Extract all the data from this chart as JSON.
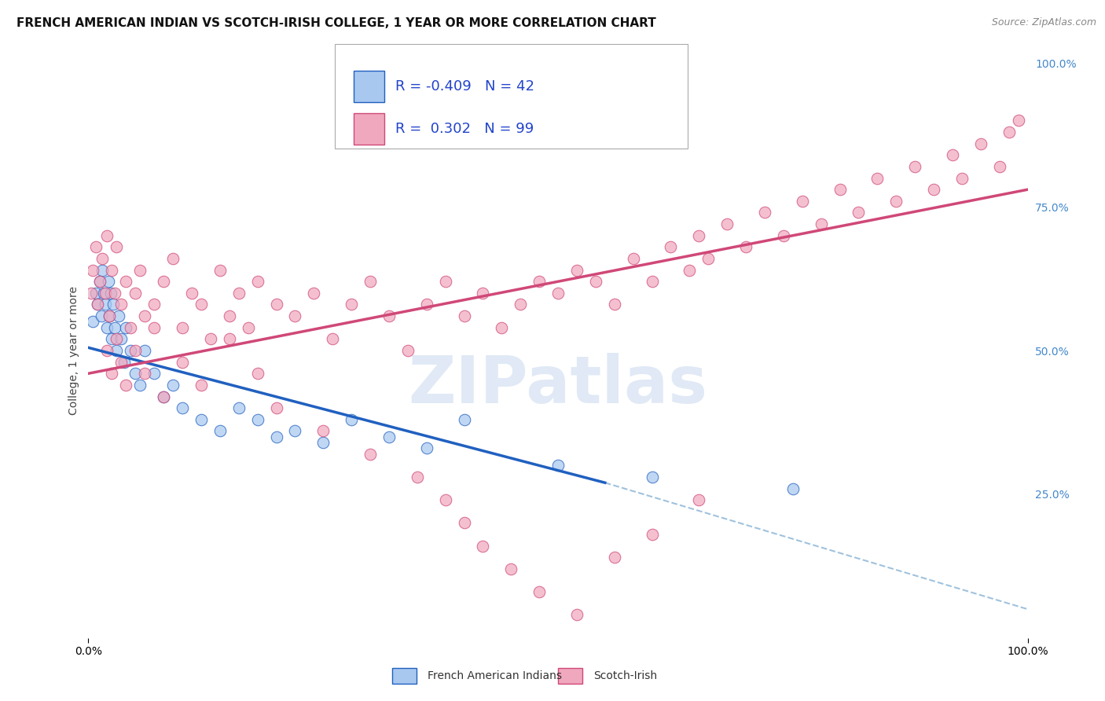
{
  "title": "FRENCH AMERICAN INDIAN VS SCOTCH-IRISH COLLEGE, 1 YEAR OR MORE CORRELATION CHART",
  "source": "Source: ZipAtlas.com",
  "ylabel": "College, 1 year or more",
  "legend_label_1": "French American Indians",
  "legend_label_2": "Scotch-Irish",
  "r1": -0.409,
  "n1": 42,
  "r2": 0.302,
  "n2": 99,
  "color_blue": "#a8c8f0",
  "color_pink": "#f0a8be",
  "line_blue": "#2060c0",
  "line_pink": "#d04878",
  "line_dash_color": "#90b8d8",
  "watermark_color": "#c8d8ee",
  "tick_color_right": "#4488cc",
  "grid_color": "#c8d8e8",
  "title_color": "#111111",
  "source_color": "#888888",
  "bg_color": "#ffffff",
  "blue_x": [
    0.5,
    0.8,
    1.0,
    1.2,
    1.4,
    1.5,
    1.6,
    1.8,
    2.0,
    2.1,
    2.2,
    2.4,
    2.5,
    2.6,
    2.8,
    3.0,
    3.2,
    3.5,
    3.8,
    4.0,
    4.5,
    5.0,
    5.5,
    6.0,
    7.0,
    8.0,
    9.0,
    10.0,
    12.0,
    14.0,
    16.0,
    18.0,
    20.0,
    22.0,
    25.0,
    28.0,
    32.0,
    36.0,
    40.0,
    50.0,
    60.0,
    75.0
  ],
  "blue_y": [
    55.0,
    60.0,
    58.0,
    62.0,
    56.0,
    64.0,
    60.0,
    58.0,
    54.0,
    62.0,
    56.0,
    60.0,
    52.0,
    58.0,
    54.0,
    50.0,
    56.0,
    52.0,
    48.0,
    54.0,
    50.0,
    46.0,
    44.0,
    50.0,
    46.0,
    42.0,
    44.0,
    40.0,
    38.0,
    36.0,
    40.0,
    38.0,
    35.0,
    36.0,
    34.0,
    38.0,
    35.0,
    33.0,
    38.0,
    30.0,
    28.0,
    26.0
  ],
  "pink_x": [
    0.3,
    0.5,
    0.8,
    1.0,
    1.2,
    1.5,
    1.8,
    2.0,
    2.2,
    2.5,
    2.8,
    3.0,
    3.5,
    4.0,
    4.5,
    5.0,
    5.5,
    6.0,
    7.0,
    8.0,
    9.0,
    10.0,
    11.0,
    12.0,
    13.0,
    14.0,
    15.0,
    16.0,
    17.0,
    18.0,
    20.0,
    22.0,
    24.0,
    26.0,
    28.0,
    30.0,
    32.0,
    34.0,
    36.0,
    38.0,
    40.0,
    42.0,
    44.0,
    46.0,
    48.0,
    50.0,
    52.0,
    54.0,
    56.0,
    58.0,
    60.0,
    62.0,
    64.0,
    65.0,
    66.0,
    68.0,
    70.0,
    72.0,
    74.0,
    76.0,
    78.0,
    80.0,
    82.0,
    84.0,
    86.0,
    88.0,
    90.0,
    92.0,
    93.0,
    95.0,
    97.0,
    98.0,
    99.0,
    2.0,
    2.5,
    3.0,
    3.5,
    4.0,
    5.0,
    6.0,
    7.0,
    8.0,
    10.0,
    12.0,
    15.0,
    18.0,
    20.0,
    25.0,
    30.0,
    35.0,
    38.0,
    40.0,
    42.0,
    45.0,
    48.0,
    52.0,
    56.0,
    60.0,
    65.0
  ],
  "pink_y": [
    60.0,
    64.0,
    68.0,
    58.0,
    62.0,
    66.0,
    60.0,
    70.0,
    56.0,
    64.0,
    60.0,
    68.0,
    58.0,
    62.0,
    54.0,
    60.0,
    64.0,
    56.0,
    58.0,
    62.0,
    66.0,
    54.0,
    60.0,
    58.0,
    52.0,
    64.0,
    56.0,
    60.0,
    54.0,
    62.0,
    58.0,
    56.0,
    60.0,
    52.0,
    58.0,
    62.0,
    56.0,
    50.0,
    58.0,
    62.0,
    56.0,
    60.0,
    54.0,
    58.0,
    62.0,
    60.0,
    64.0,
    62.0,
    58.0,
    66.0,
    62.0,
    68.0,
    64.0,
    70.0,
    66.0,
    72.0,
    68.0,
    74.0,
    70.0,
    76.0,
    72.0,
    78.0,
    74.0,
    80.0,
    76.0,
    82.0,
    78.0,
    84.0,
    80.0,
    86.0,
    82.0,
    88.0,
    90.0,
    50.0,
    46.0,
    52.0,
    48.0,
    44.0,
    50.0,
    46.0,
    54.0,
    42.0,
    48.0,
    44.0,
    52.0,
    46.0,
    40.0,
    36.0,
    32.0,
    28.0,
    24.0,
    20.0,
    16.0,
    12.0,
    8.0,
    4.0,
    14.0,
    18.0,
    24.0
  ],
  "xlim": [
    0,
    100
  ],
  "ylim": [
    0,
    100
  ],
  "xtick_vals": [
    0,
    100
  ],
  "xtick_labels": [
    "0.0%",
    "100.0%"
  ],
  "ytick_vals_right": [
    25,
    50,
    75,
    100
  ],
  "ytick_labels_right": [
    "25.0%",
    "50.0%",
    "75.0%",
    "100.0%"
  ],
  "blue_line_x0": 0,
  "blue_line_y0": 50.5,
  "blue_line_x1": 55,
  "blue_line_y1": 27.0,
  "blue_dash_x1": 100,
  "blue_dash_y1": 5.0,
  "pink_line_x0": 0,
  "pink_line_y0": 46.0,
  "pink_line_x1": 100,
  "pink_line_y1": 78.0,
  "legend_r1_text": "R = -0.409   N = 42",
  "legend_r2_text": "R =  0.302   N = 99",
  "title_fontsize": 11,
  "source_fontsize": 9,
  "axis_label_fontsize": 10,
  "tick_fontsize": 10,
  "legend_fontsize": 13,
  "watermark_fontsize": 60
}
